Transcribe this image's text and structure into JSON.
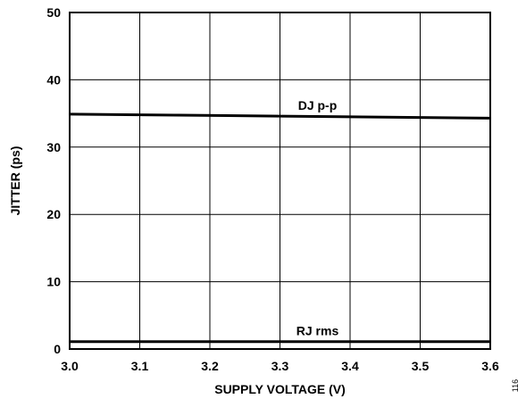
{
  "chart_data": {
    "type": "line",
    "title": "",
    "xlabel": "SUPPLY VOLTAGE (V)",
    "ylabel": "JITTER (ps)",
    "xlim": [
      3.0,
      3.6
    ],
    "ylim": [
      0,
      50
    ],
    "x_ticks": [
      "3.0",
      "3.1",
      "3.2",
      "3.3",
      "3.4",
      "3.5",
      "3.6"
    ],
    "y_ticks": [
      "0",
      "10",
      "20",
      "30",
      "40",
      "50"
    ],
    "grid": true,
    "series": [
      {
        "name": "DJ p-p",
        "x": [
          3.0,
          3.3,
          3.6
        ],
        "y": [
          34.9,
          34.6,
          34.3
        ]
      },
      {
        "name": "RJ rms",
        "x": [
          3.0,
          3.3,
          3.6
        ],
        "y": [
          1.1,
          1.1,
          1.1
        ]
      }
    ],
    "figure_id": "116"
  }
}
